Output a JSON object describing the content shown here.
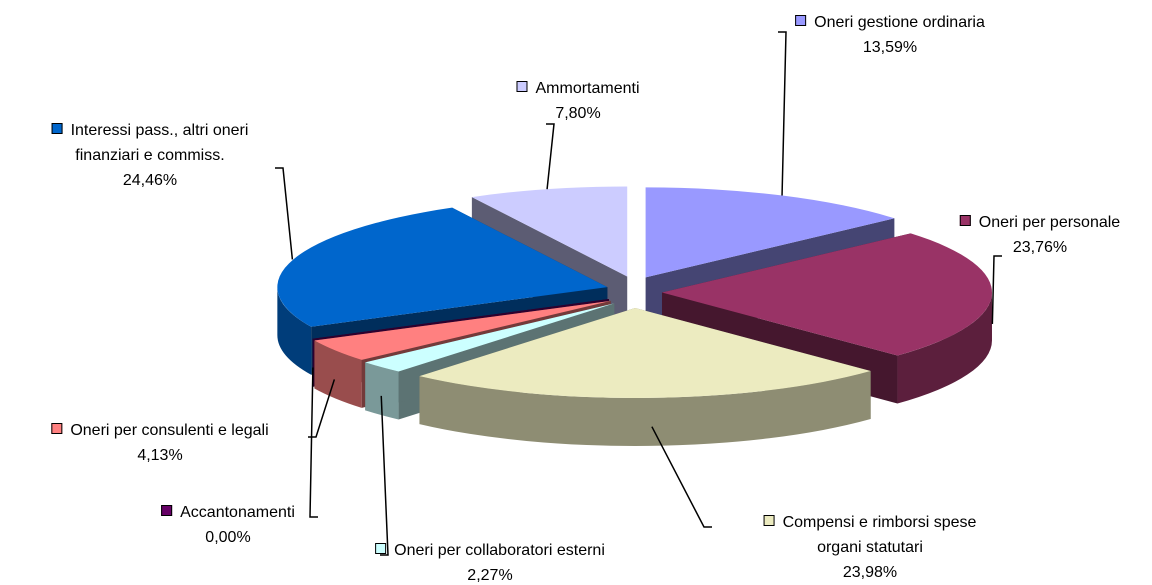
{
  "chart_data": {
    "type": "pie",
    "categories": [
      "Oneri gestione ordinaria",
      "Oneri per personale",
      "Compensi e rimborsi spese\norgani statutari",
      "Oneri per collaboratori esterni",
      "Oneri per consulenti e legali",
      "Accantonamenti",
      "Interessi pass., altri oneri\nfinanziari e commiss.",
      "Ammortamenti"
    ],
    "values": [
      13.59,
      23.76,
      23.98,
      2.27,
      4.13,
      0,
      24.46,
      7.8
    ],
    "value_labels": [
      "13,59%",
      "23,76%",
      "23,98%",
      "2,27%",
      "4,13%",
      "0,00%",
      "24,46%",
      "7,80%"
    ],
    "colors": [
      "#9999ff",
      "#993366",
      "#ecebc0",
      "#ccffff",
      "#ff8080",
      "#660066",
      "#0066cc",
      "#ccccff"
    ],
    "start_angle": 0,
    "direction": "clockwise",
    "exploded": true,
    "three_d": true
  }
}
